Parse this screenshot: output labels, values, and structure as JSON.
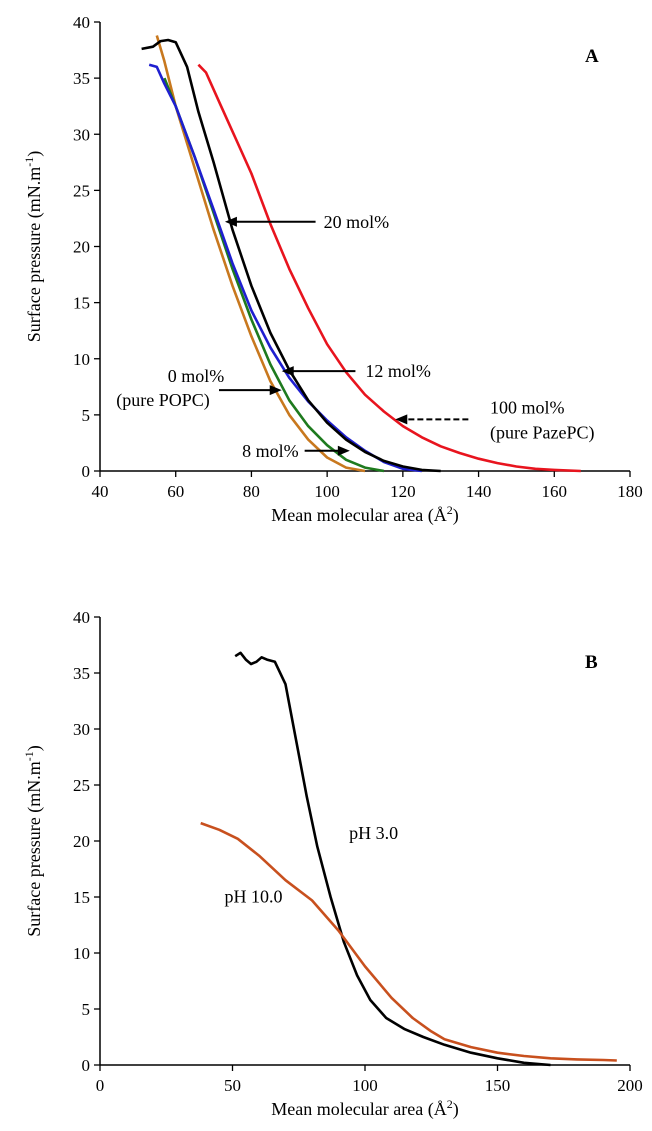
{
  "chart_data": [
    {
      "panel": "A",
      "type": "line",
      "panel_label": "A",
      "xlabel": "Mean molecular area (Å²)",
      "ylabel": "Surface pressure (mN.m⁻¹)",
      "xlim": [
        40,
        180
      ],
      "ylim": [
        0,
        40
      ],
      "xticks": [
        40,
        60,
        80,
        100,
        120,
        140,
        160,
        180
      ],
      "yticks": [
        0,
        5,
        10,
        15,
        20,
        25,
        30,
        35,
        40
      ],
      "grid": false,
      "series": [
        {
          "name": "0 mol% (pure POPC)",
          "color": "#c8781e",
          "points": [
            [
              55,
              38.8
            ],
            [
              57,
              36.5
            ],
            [
              60,
              32.5
            ],
            [
              65,
              27
            ],
            [
              70,
              21.5
            ],
            [
              75,
              16.5
            ],
            [
              80,
              12
            ],
            [
              85,
              8
            ],
            [
              90,
              5
            ],
            [
              95,
              2.8
            ],
            [
              100,
              1.2
            ],
            [
              105,
              0.3
            ],
            [
              110,
              0
            ]
          ]
        },
        {
          "name": "8 mol%",
          "color": "#1e7a1e",
          "points": [
            [
              57,
              35
            ],
            [
              60,
              32.5
            ],
            [
              65,
              28
            ],
            [
              70,
              23
            ],
            [
              75,
              18
            ],
            [
              80,
              13.5
            ],
            [
              85,
              9.5
            ],
            [
              90,
              6.3
            ],
            [
              95,
              4
            ],
            [
              100,
              2.3
            ],
            [
              105,
              1
            ],
            [
              110,
              0.3
            ],
            [
              115,
              0
            ]
          ]
        },
        {
          "name": "12 mol%",
          "color": "#1f1fd0",
          "points": [
            [
              53,
              36.2
            ],
            [
              55,
              36
            ],
            [
              57,
              34.5
            ],
            [
              60,
              32.5
            ],
            [
              65,
              28
            ],
            [
              70,
              23.3
            ],
            [
              75,
              18.5
            ],
            [
              80,
              14.3
            ],
            [
              85,
              11
            ],
            [
              90,
              8.3
            ],
            [
              95,
              6.2
            ],
            [
              100,
              4.5
            ],
            [
              105,
              3
            ],
            [
              110,
              1.8
            ],
            [
              115,
              0.8
            ],
            [
              120,
              0.2
            ],
            [
              125,
              0
            ]
          ]
        },
        {
          "name": "20 mol%",
          "color": "#000000",
          "points": [
            [
              51,
              37.6
            ],
            [
              54,
              37.8
            ],
            [
              56,
              38.3
            ],
            [
              58,
              38.4
            ],
            [
              60,
              38.2
            ],
            [
              63,
              36
            ],
            [
              66,
              32
            ],
            [
              70,
              27.5
            ],
            [
              75,
              21.5
            ],
            [
              80,
              16.5
            ],
            [
              85,
              12.3
            ],
            [
              90,
              9
            ],
            [
              95,
              6.3
            ],
            [
              100,
              4.3
            ],
            [
              105,
              2.8
            ],
            [
              110,
              1.7
            ],
            [
              115,
              0.9
            ],
            [
              120,
              0.4
            ],
            [
              125,
              0.1
            ],
            [
              130,
              0
            ]
          ]
        },
        {
          "name": "100 mol% (pure PazePC)",
          "color": "#e8141e",
          "points": [
            [
              66,
              36.2
            ],
            [
              68,
              35.5
            ],
            [
              72,
              32.5
            ],
            [
              76,
              29.5
            ],
            [
              80,
              26.5
            ],
            [
              85,
              22
            ],
            [
              90,
              18
            ],
            [
              95,
              14.5
            ],
            [
              100,
              11.3
            ],
            [
              105,
              8.8
            ],
            [
              110,
              6.8
            ],
            [
              115,
              5.3
            ],
            [
              120,
              4
            ],
            [
              125,
              3
            ],
            [
              130,
              2.2
            ],
            [
              135,
              1.6
            ],
            [
              140,
              1.1
            ],
            [
              145,
              0.7
            ],
            [
              150,
              0.4
            ],
            [
              155,
              0.2
            ],
            [
              160,
              0.1
            ],
            [
              167,
              0
            ]
          ]
        }
      ],
      "annotations": [
        {
          "text": "20 mol%",
          "target": [
            73,
            22.2
          ],
          "text_at": [
            98,
            22.2
          ]
        },
        {
          "text": "12 mol%",
          "target": [
            88,
            8.9
          ],
          "text_at": [
            108,
            8.9
          ]
        },
        {
          "text": "0 mol%",
          "target": [
            88,
            7.2
          ]
        },
        {
          "text": "(pure POPC)"
        },
        {
          "text": "8 mol%",
          "target": [
            106,
            1.8
          ],
          "text_at": [
            93,
            1.8
          ]
        },
        {
          "text": "100 mol%",
          "target": [
            118,
            4.6
          ],
          "text_at": [
            141,
            4.6
          ]
        },
        {
          "text": "(pure PazePC)"
        }
      ]
    },
    {
      "panel": "B",
      "type": "line",
      "panel_label": "B",
      "xlabel": "Mean molecular area (Å²)",
      "ylabel": "Surface pressure (mN.m⁻¹)",
      "xlim": [
        0,
        200
      ],
      "ylim": [
        0,
        40
      ],
      "xticks": [
        0,
        50,
        100,
        150,
        200
      ],
      "yticks": [
        0,
        5,
        10,
        15,
        20,
        25,
        30,
        35,
        40
      ],
      "grid": false,
      "series": [
        {
          "name": "pH 3.0",
          "color": "#000000",
          "points": [
            [
              51,
              36.5
            ],
            [
              53,
              36.8
            ],
            [
              55,
              36.2
            ],
            [
              57,
              35.8
            ],
            [
              59,
              36
            ],
            [
              61,
              36.4
            ],
            [
              63,
              36.2
            ],
            [
              66,
              36
            ],
            [
              70,
              34
            ],
            [
              74,
              29
            ],
            [
              78,
              24
            ],
            [
              82,
              19.5
            ],
            [
              87,
              15
            ],
            [
              92,
              11
            ],
            [
              97,
              8
            ],
            [
              102,
              5.8
            ],
            [
              108,
              4.2
            ],
            [
              115,
              3.2
            ],
            [
              122,
              2.5
            ],
            [
              130,
              1.8
            ],
            [
              140,
              1.1
            ],
            [
              150,
              0.6
            ],
            [
              160,
              0.2
            ],
            [
              170,
              0
            ]
          ]
        },
        {
          "name": "pH 10.0",
          "color": "#c8501e",
          "points": [
            [
              38,
              21.6
            ],
            [
              45,
              21
            ],
            [
              52,
              20.2
            ],
            [
              60,
              18.7
            ],
            [
              70,
              16.5
            ],
            [
              80,
              14.7
            ],
            [
              90,
              12
            ],
            [
              100,
              8.8
            ],
            [
              110,
              6
            ],
            [
              118,
              4.2
            ],
            [
              125,
              3
            ],
            [
              130,
              2.3
            ],
            [
              140,
              1.6
            ],
            [
              150,
              1.1
            ],
            [
              160,
              0.8
            ],
            [
              170,
              0.6
            ],
            [
              180,
              0.5
            ],
            [
              190,
              0.45
            ],
            [
              195,
              0.4
            ]
          ]
        }
      ],
      "annotations": [
        {
          "text": "pH 3.0",
          "text_at": [
            94,
            20.2
          ]
        },
        {
          "text": "pH 10.0",
          "text_at": [
            47,
            14.5
          ]
        }
      ]
    }
  ]
}
